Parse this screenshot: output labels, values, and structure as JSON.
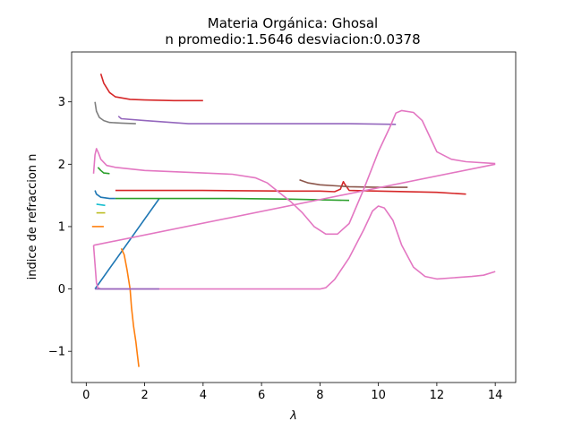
{
  "chart_data": {
    "type": "line",
    "title": "Materia Orgánica: Ghosal",
    "subtitle": "n promedio:1.5646 desviacion:0.0378",
    "xlabel": "λ",
    "ylabel": "indice de refraccion n",
    "xlim": [
      -0.5,
      14.7
    ],
    "ylim": [
      -1.5,
      3.8
    ],
    "xticks": [
      0,
      2,
      4,
      6,
      8,
      10,
      12,
      14
    ],
    "yticks": [
      -1,
      0,
      1,
      2,
      3
    ],
    "grid": false,
    "legend": "none",
    "series": [
      {
        "color": "#1f77b4",
        "points": [
          [
            0.3,
            0.0
          ],
          [
            2.5,
            1.45
          ]
        ]
      },
      {
        "color": "#ff7f0e",
        "points": [
          [
            1.2,
            0.65
          ],
          [
            1.3,
            0.55
          ],
          [
            1.4,
            0.3
          ],
          [
            1.5,
            0.0
          ],
          [
            1.55,
            -0.3
          ],
          [
            1.62,
            -0.6
          ],
          [
            1.7,
            -0.85
          ],
          [
            1.75,
            -1.05
          ],
          [
            1.8,
            -1.25
          ]
        ]
      },
      {
        "color": "#ff7f0e",
        "points": [
          [
            0.2,
            1.0
          ],
          [
            0.6,
            1.0
          ]
        ]
      },
      {
        "color": "#2ca02c",
        "points": [
          [
            1.0,
            1.45
          ],
          [
            3.0,
            1.45
          ],
          [
            5.0,
            1.45
          ],
          [
            7.0,
            1.44
          ],
          [
            9.0,
            1.42
          ]
        ]
      },
      {
        "color": "#2ca02c",
        "points": [
          [
            0.4,
            1.95
          ],
          [
            0.5,
            1.9
          ],
          [
            0.6,
            1.86
          ],
          [
            0.8,
            1.85
          ]
        ]
      },
      {
        "color": "#d62728",
        "points": [
          [
            0.5,
            3.45
          ],
          [
            0.6,
            3.3
          ],
          [
            0.8,
            3.15
          ],
          [
            1.0,
            3.08
          ],
          [
            1.5,
            3.04
          ],
          [
            2.0,
            3.03
          ],
          [
            3.0,
            3.02
          ],
          [
            4.0,
            3.02
          ]
        ]
      },
      {
        "color": "#d62728",
        "points": [
          [
            1.0,
            1.58
          ],
          [
            4.0,
            1.58
          ],
          [
            7.0,
            1.57
          ],
          [
            8.0,
            1.57
          ],
          [
            8.5,
            1.56
          ],
          [
            8.7,
            1.6
          ],
          [
            8.8,
            1.72
          ],
          [
            8.85,
            1.68
          ],
          [
            9.0,
            1.58
          ],
          [
            10.0,
            1.57
          ],
          [
            12.0,
            1.55
          ],
          [
            13.0,
            1.52
          ]
        ]
      },
      {
        "color": "#9467bd",
        "points": [
          [
            1.1,
            2.77
          ],
          [
            1.2,
            2.73
          ],
          [
            2.0,
            2.7
          ],
          [
            3.5,
            2.65
          ],
          [
            5.0,
            2.65
          ],
          [
            7.0,
            2.65
          ],
          [
            9.0,
            2.65
          ],
          [
            10.6,
            2.64
          ]
        ]
      },
      {
        "color": "#8c564b",
        "points": [
          [
            7.3,
            1.75
          ],
          [
            7.6,
            1.7
          ],
          [
            8.0,
            1.67
          ],
          [
            9.0,
            1.64
          ],
          [
            10.0,
            1.63
          ],
          [
            11.0,
            1.63
          ]
        ]
      },
      {
        "color": "#e377c2",
        "points": [
          [
            0.25,
            1.85
          ],
          [
            0.3,
            2.15
          ],
          [
            0.35,
            2.25
          ],
          [
            0.42,
            2.18
          ],
          [
            0.5,
            2.08
          ],
          [
            0.7,
            1.98
          ],
          [
            1.0,
            1.95
          ],
          [
            2.0,
            1.9
          ],
          [
            3.0,
            1.88
          ],
          [
            4.0,
            1.86
          ],
          [
            5.0,
            1.84
          ],
          [
            5.8,
            1.78
          ],
          [
            6.2,
            1.7
          ],
          [
            6.6,
            1.55
          ],
          [
            7.0,
            1.4
          ],
          [
            7.4,
            1.22
          ],
          [
            7.8,
            1.0
          ],
          [
            8.2,
            0.88
          ],
          [
            8.6,
            0.88
          ],
          [
            9.0,
            1.05
          ],
          [
            9.5,
            1.6
          ],
          [
            10.0,
            2.2
          ],
          [
            10.4,
            2.6
          ],
          [
            10.6,
            2.82
          ],
          [
            10.8,
            2.86
          ],
          [
            11.2,
            2.83
          ],
          [
            11.5,
            2.7
          ],
          [
            11.8,
            2.4
          ],
          [
            12.0,
            2.2
          ],
          [
            12.5,
            2.08
          ],
          [
            13.0,
            2.04
          ],
          [
            14.0,
            2.01
          ]
        ]
      },
      {
        "color": "#e377c2",
        "points": [
          [
            0.25,
            0.7
          ],
          [
            14.0,
            2.0
          ]
        ]
      },
      {
        "color": "#e377c2",
        "points": [
          [
            0.25,
            0.7
          ],
          [
            0.3,
            0.4
          ],
          [
            0.35,
            0.1
          ],
          [
            0.4,
            0.02
          ],
          [
            0.5,
            0.0
          ],
          [
            2.0,
            0.0
          ],
          [
            4.0,
            0.0
          ],
          [
            6.0,
            0.0
          ],
          [
            8.0,
            0.0
          ],
          [
            8.2,
            0.02
          ],
          [
            8.5,
            0.15
          ],
          [
            9.0,
            0.5
          ],
          [
            9.5,
            0.95
          ],
          [
            9.8,
            1.25
          ],
          [
            10.0,
            1.33
          ],
          [
            10.2,
            1.3
          ],
          [
            10.5,
            1.1
          ],
          [
            10.8,
            0.7
          ],
          [
            11.2,
            0.35
          ],
          [
            11.6,
            0.2
          ],
          [
            12.0,
            0.16
          ],
          [
            12.6,
            0.18
          ],
          [
            13.2,
            0.2
          ],
          [
            13.6,
            0.22
          ],
          [
            14.0,
            0.28
          ]
        ]
      },
      {
        "color": "#7f7f7f",
        "points": [
          [
            0.3,
            3.0
          ],
          [
            0.35,
            2.85
          ],
          [
            0.45,
            2.75
          ],
          [
            0.6,
            2.7
          ],
          [
            0.8,
            2.67
          ],
          [
            1.2,
            2.66
          ],
          [
            1.7,
            2.65
          ]
        ]
      },
      {
        "color": "#bcbd22",
        "points": [
          [
            0.35,
            1.22
          ],
          [
            0.65,
            1.22
          ]
        ]
      },
      {
        "color": "#17becf",
        "points": [
          [
            0.35,
            1.36
          ],
          [
            0.65,
            1.34
          ]
        ]
      },
      {
        "color": "#1f77b4",
        "points": [
          [
            0.3,
            1.58
          ],
          [
            0.35,
            1.52
          ],
          [
            0.5,
            1.47
          ],
          [
            0.8,
            1.45
          ],
          [
            1.0,
            1.45
          ]
        ]
      },
      {
        "color": "#9467bd",
        "points": [
          [
            0.3,
            0.0
          ],
          [
            2.5,
            0.0
          ]
        ]
      }
    ]
  }
}
